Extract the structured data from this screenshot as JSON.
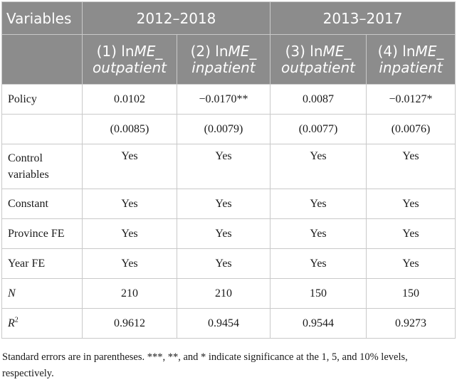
{
  "header": {
    "variables": "Variables",
    "period1": "2012–2018",
    "period2": "2013–2017",
    "columns": [
      {
        "prefix": "(1) ln",
        "var": "ME_",
        "sub": "outpatient"
      },
      {
        "prefix": "(2) ln",
        "var": "ME_",
        "sub": "inpatient"
      },
      {
        "prefix": "(3) ln",
        "var": "ME_",
        "sub": "outpatient"
      },
      {
        "prefix": "(4) ln",
        "var": "ME_",
        "sub": "inpatient"
      }
    ]
  },
  "rows": [
    {
      "label": "Policy",
      "values": [
        "0.0102",
        "−0.0170**",
        "0.0087",
        "−0.0127*"
      ]
    },
    {
      "label": "",
      "values": [
        "(0.0085)",
        "(0.0079)",
        "(0.0077)",
        "(0.0076)"
      ]
    },
    {
      "label": "Control variables",
      "values": [
        "Yes",
        "Yes",
        "Yes",
        "Yes"
      ]
    },
    {
      "label": "Constant",
      "values": [
        "Yes",
        "Yes",
        "Yes",
        "Yes"
      ]
    },
    {
      "label": "Province FE",
      "values": [
        "Yes",
        "Yes",
        "Yes",
        "Yes"
      ]
    },
    {
      "label": "Year FE",
      "values": [
        "Yes",
        "Yes",
        "Yes",
        "Yes"
      ]
    },
    {
      "label": "N",
      "values": [
        "210",
        "210",
        "150",
        "150"
      ]
    },
    {
      "label": "R",
      "sup": "2",
      "values": [
        "0.9612",
        "0.9454",
        "0.9544",
        "0.9273"
      ]
    }
  ],
  "note": "Standard errors are in parentheses. ***, **, and * indicate significance at the 1, 5, and 10% levels, respectively."
}
